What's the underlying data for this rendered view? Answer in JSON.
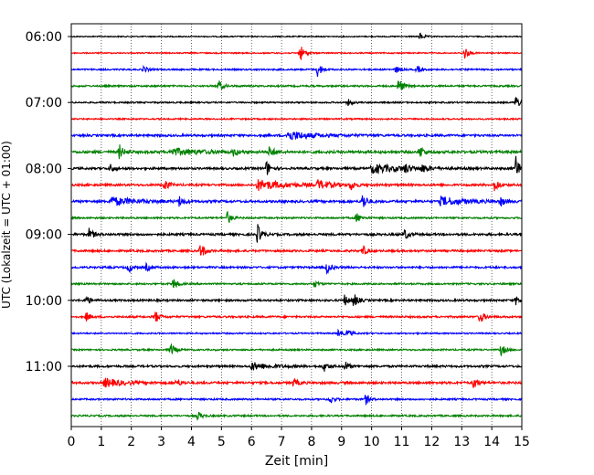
{
  "chart_data": {
    "type": "line",
    "chart_kind": "helicorder",
    "title": "",
    "xlabel": "Zeit  [min]",
    "ylabel": "UTC (Lokalzeit = UTC + 01:00)",
    "xlim": [
      0,
      15
    ],
    "x_ticks": [
      "0",
      "1",
      "2",
      "3",
      "4",
      "5",
      "6",
      "7",
      "8",
      "9",
      "10",
      "11",
      "12",
      "13",
      "14",
      "15"
    ],
    "y_tick_labels": [
      "06:00",
      "07:00",
      "08:00",
      "09:00",
      "10:00",
      "11:00"
    ],
    "minutes_per_line": 15,
    "line_start_times": [
      "06:00",
      "06:15",
      "06:30",
      "06:45",
      "07:00",
      "07:15",
      "07:30",
      "07:45",
      "08:00",
      "08:15",
      "08:30",
      "08:45",
      "09:00",
      "09:15",
      "09:30",
      "09:45",
      "10:00",
      "10:15",
      "10:30",
      "10:45",
      "11:00",
      "11:15",
      "11:30",
      "11:45"
    ],
    "trace_colors": [
      "#000000",
      "#ff0000",
      "#0000ff",
      "#008000"
    ],
    "vertical_grid": "dotted",
    "traces": [
      {
        "start": "06:00",
        "color": "#000000",
        "noise": 0.25,
        "events": [
          {
            "t": 11.6,
            "a": 4
          }
        ]
      },
      {
        "start": "06:15",
        "color": "#ff0000",
        "noise": 0.3,
        "events": [
          {
            "t": 7.6,
            "a": 11
          },
          {
            "t": 13.1,
            "a": 7
          }
        ]
      },
      {
        "start": "06:30",
        "color": "#0000ff",
        "noise": 0.45,
        "events": [
          {
            "t": 8.2,
            "a": 9
          },
          {
            "t": 2.4,
            "a": 4
          },
          {
            "t": 10.8,
            "a": 4
          },
          {
            "t": 11.5,
            "a": 4
          }
        ]
      },
      {
        "start": "06:45",
        "color": "#008000",
        "noise": 0.55,
        "events": [
          {
            "t": 4.9,
            "a": 7
          },
          {
            "t": 10.9,
            "a": 10
          }
        ]
      },
      {
        "start": "07:00",
        "color": "#000000",
        "noise": 0.45,
        "events": [
          {
            "t": 9.2,
            "a": 4
          },
          {
            "t": 14.8,
            "a": 8
          }
        ]
      },
      {
        "start": "07:15",
        "color": "#ff0000",
        "noise": 0.4,
        "events": []
      },
      {
        "start": "07:30",
        "color": "#0000ff",
        "noise": 0.8,
        "events": [
          {
            "t": 7.2,
            "a": 5,
            "w": 0.8
          }
        ]
      },
      {
        "start": "07:45",
        "color": "#008000",
        "noise": 1.0,
        "events": [
          {
            "t": 1.6,
            "a": 8
          },
          {
            "t": 6.6,
            "a": 7
          },
          {
            "t": 11.6,
            "a": 8
          },
          {
            "t": 3.3,
            "a": 4,
            "w": 0.9
          },
          {
            "t": 5.4,
            "a": 4
          }
        ]
      },
      {
        "start": "08:00",
        "color": "#000000",
        "noise": 0.8,
        "events": [
          {
            "t": 14.8,
            "a": 14
          },
          {
            "t": 6.5,
            "a": 9
          },
          {
            "t": 10,
            "a": 5,
            "w": 0.9
          },
          {
            "t": 1.3,
            "a": 5
          },
          {
            "t": 11.1,
            "a": 5
          },
          {
            "t": 11.7,
            "a": 5
          }
        ]
      },
      {
        "start": "08:15",
        "color": "#ff0000",
        "noise": 0.8,
        "events": [
          {
            "t": 14.1,
            "a": 8
          },
          {
            "t": 3.1,
            "a": 7
          },
          {
            "t": 6.2,
            "a": 6,
            "w": 0.8
          },
          {
            "t": 8.2,
            "a": 5,
            "w": 0.4
          },
          {
            "t": 9.3,
            "a": 6
          }
        ]
      },
      {
        "start": "08:30",
        "color": "#0000ff",
        "noise": 0.9,
        "events": [
          {
            "t": 9.7,
            "a": 10
          },
          {
            "t": 1.3,
            "a": 5,
            "w": 0.7
          },
          {
            "t": 3.6,
            "a": 6
          },
          {
            "t": 12.3,
            "a": 5,
            "w": 0.7
          },
          {
            "t": 14.3,
            "a": 5
          }
        ]
      },
      {
        "start": "08:45",
        "color": "#008000",
        "noise": 0.55,
        "events": [
          {
            "t": 5.2,
            "a": 7
          },
          {
            "t": 9.5,
            "a": 6
          }
        ]
      },
      {
        "start": "09:00",
        "color": "#000000",
        "noise": 0.85,
        "events": [
          {
            "t": 6.2,
            "a": 11
          },
          {
            "t": 0.6,
            "a": 7
          },
          {
            "t": 11.1,
            "a": 6
          }
        ]
      },
      {
        "start": "09:15",
        "color": "#ff0000",
        "noise": 0.75,
        "events": [
          {
            "t": 4.3,
            "a": 10
          },
          {
            "t": 9.7,
            "a": 6
          }
        ]
      },
      {
        "start": "09:30",
        "color": "#0000ff",
        "noise": 0.7,
        "events": [
          {
            "t": 1.9,
            "a": 6
          },
          {
            "t": 8.5,
            "a": 7
          },
          {
            "t": 2.5,
            "a": 4
          }
        ]
      },
      {
        "start": "09:45",
        "color": "#008000",
        "noise": 0.55,
        "events": [
          {
            "t": 3.4,
            "a": 7
          },
          {
            "t": 8.1,
            "a": 4
          }
        ]
      },
      {
        "start": "10:00",
        "color": "#000000",
        "noise": 0.7,
        "events": [
          {
            "t": 9.4,
            "a": 8
          },
          {
            "t": 9.1,
            "a": 6
          },
          {
            "t": 0.5,
            "a": 5
          },
          {
            "t": 14.8,
            "a": 5
          }
        ]
      },
      {
        "start": "10:15",
        "color": "#ff0000",
        "noise": 0.65,
        "events": [
          {
            "t": 2.8,
            "a": 7
          },
          {
            "t": 13.6,
            "a": 8
          },
          {
            "t": 0.5,
            "a": 5
          }
        ]
      },
      {
        "start": "10:30",
        "color": "#0000ff",
        "noise": 0.4,
        "events": [
          {
            "t": 8.9,
            "a": 5
          },
          {
            "t": 9.2,
            "a": 4
          }
        ]
      },
      {
        "start": "10:45",
        "color": "#008000",
        "noise": 0.5,
        "events": [
          {
            "t": 3.3,
            "a": 8
          },
          {
            "t": 14.3,
            "a": 7
          }
        ]
      },
      {
        "start": "11:00",
        "color": "#000000",
        "noise": 0.75,
        "events": [
          {
            "t": 8.4,
            "a": 6
          },
          {
            "t": 9.1,
            "a": 6
          },
          {
            "t": 6,
            "a": 4,
            "w": 0.6
          }
        ]
      },
      {
        "start": "11:15",
        "color": "#ff0000",
        "noise": 0.85,
        "events": [
          {
            "t": 13.4,
            "a": 7
          },
          {
            "t": 1.1,
            "a": 5,
            "w": 0.5
          },
          {
            "t": 3.5,
            "a": 5
          },
          {
            "t": 7.4,
            "a": 5
          }
        ]
      },
      {
        "start": "11:30",
        "color": "#0000ff",
        "noise": 0.55,
        "events": [
          {
            "t": 8.6,
            "a": 5
          },
          {
            "t": 9.8,
            "a": 6
          }
        ]
      },
      {
        "start": "11:45",
        "color": "#008000",
        "noise": 0.55,
        "events": [
          {
            "t": 4.2,
            "a": 5
          }
        ]
      }
    ]
  }
}
